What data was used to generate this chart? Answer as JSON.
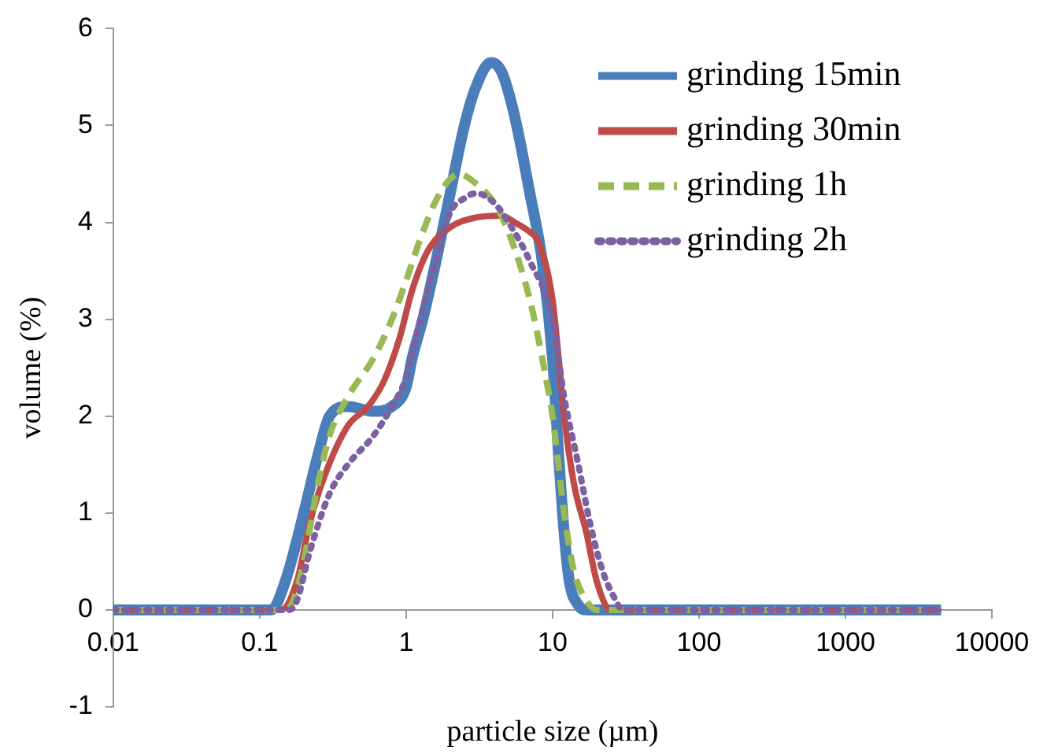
{
  "chart_data": {
    "type": "line",
    "xlabel": "particle size (µm)",
    "ylabel": "volume (%)",
    "log": "x",
    "xlim": [
      0.01,
      10000
    ],
    "xticks": [
      0.01,
      0.1,
      1,
      10,
      100,
      1000,
      10000
    ],
    "ylim": [
      -1,
      6
    ],
    "yticks": [
      -1,
      0,
      1,
      2,
      3,
      4,
      5,
      6
    ],
    "grid": false,
    "legend": "top right",
    "marker": "none",
    "series": [
      {
        "name": "grinding 15min",
        "color": "#4a7ebb",
        "line_style": "solid",
        "x": [
          0.01,
          0.1,
          0.12,
          0.15,
          0.2,
          0.25,
          0.3,
          0.4,
          0.6,
          0.8,
          1,
          1.1,
          1.3,
          1.6,
          2,
          2.5,
          3,
          3.8,
          4.5,
          5.5,
          7,
          8.5,
          10,
          11,
          12,
          13,
          15,
          17,
          100,
          1000,
          4500
        ],
        "values": [
          0,
          0,
          0,
          0.3,
          1,
          1.6,
          2,
          2.1,
          2.05,
          2.1,
          2.3,
          2.6,
          3,
          3.6,
          4.3,
          5,
          5.4,
          5.65,
          5.55,
          5.1,
          4.3,
          3.6,
          2.6,
          1.6,
          0.8,
          0.3,
          0.05,
          0,
          0,
          0,
          0
        ]
      },
      {
        "name": "grinding 30min",
        "color": "#be4b48",
        "line_style": "solid",
        "x": [
          0.01,
          0.1,
          0.14,
          0.18,
          0.22,
          0.28,
          0.4,
          0.55,
          0.7,
          0.9,
          1.1,
          1.4,
          2,
          3,
          4.5,
          5.5,
          7,
          8,
          10,
          11,
          12,
          14,
          17,
          20,
          25,
          100,
          1000,
          4500
        ],
        "values": [
          0,
          0,
          0,
          0.3,
          0.9,
          1.4,
          1.9,
          2.1,
          2.35,
          2.8,
          3.3,
          3.7,
          3.95,
          4.05,
          4.07,
          4,
          3.9,
          3.8,
          3.2,
          2.6,
          2,
          1.3,
          0.8,
          0.3,
          0,
          0,
          0,
          0
        ]
      },
      {
        "name": "grinding 1h",
        "color": "#98b954",
        "line_style": "dashed",
        "x": [
          0.01,
          0.1,
          0.15,
          0.17,
          0.2,
          0.25,
          0.3,
          0.4,
          0.6,
          0.8,
          1,
          1.3,
          1.7,
          2.3,
          3,
          4,
          5,
          7,
          9,
          10,
          12,
          14,
          17,
          20,
          100,
          1000,
          4500
        ],
        "values": [
          0,
          0,
          0,
          0.1,
          0.5,
          1.3,
          1.8,
          2.2,
          2.6,
          3,
          3.4,
          3.9,
          4.3,
          4.5,
          4.4,
          4.2,
          3.9,
          3.2,
          2.4,
          2,
          1,
          0.4,
          0.1,
          0,
          0,
          0,
          0
        ]
      },
      {
        "name": "grinding 2h",
        "color": "#7d60a0",
        "line_style": "dotted",
        "x": [
          0.01,
          0.1,
          0.16,
          0.18,
          0.22,
          0.3,
          0.4,
          0.6,
          0.8,
          1,
          1.3,
          1.6,
          2,
          2.5,
          3,
          4,
          5,
          7,
          10,
          12,
          15,
          18,
          22,
          27,
          30,
          100,
          1000,
          4500
        ],
        "values": [
          0,
          0,
          0,
          0.1,
          0.6,
          1.2,
          1.5,
          1.8,
          2.1,
          2.4,
          3.1,
          3.6,
          4.1,
          4.25,
          4.3,
          4.2,
          4,
          3.6,
          3,
          2.2,
          1.5,
          0.9,
          0.4,
          0.1,
          0,
          0,
          0,
          0
        ]
      }
    ]
  }
}
